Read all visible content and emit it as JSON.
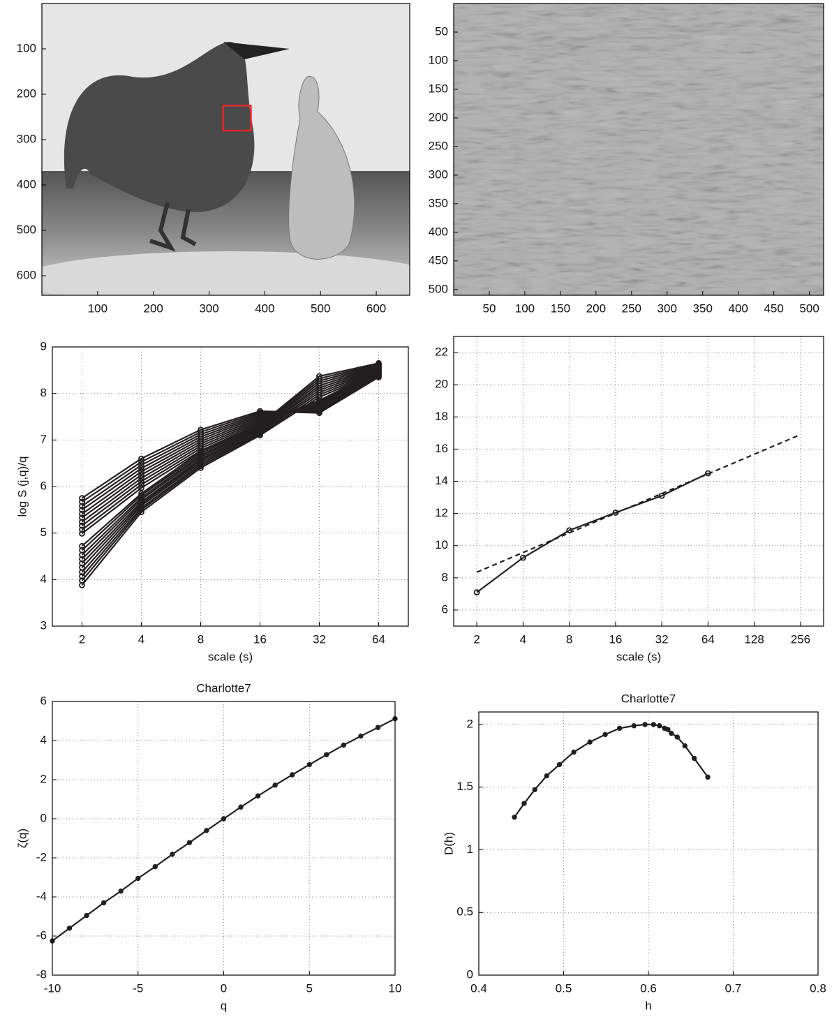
{
  "chart_data": [
    {
      "type": "image",
      "xlim": [
        0,
        660
      ],
      "ylim": [
        643,
        0
      ],
      "xticks": [
        100,
        200,
        300,
        400,
        500,
        600
      ],
      "yticks": [
        100,
        200,
        300,
        400,
        500,
        600
      ],
      "rectangle": {
        "x": [
          325,
          375
        ],
        "y": [
          225,
          280
        ],
        "color": "#e8262a"
      }
    },
    {
      "type": "image",
      "xlim": [
        0,
        520
      ],
      "ylim": [
        510,
        0
      ],
      "xticks": [
        50,
        100,
        150,
        200,
        250,
        300,
        350,
        400,
        450,
        500
      ],
      "yticks": [
        50,
        100,
        150,
        200,
        250,
        300,
        350,
        400,
        450,
        500
      ]
    },
    {
      "type": "line",
      "xscale": "log2",
      "xlim": [
        1.414,
        90.51
      ],
      "ylim": [
        3,
        9
      ],
      "xticks": [
        2,
        4,
        8,
        16,
        32,
        64
      ],
      "yticks": [
        3,
        4,
        5,
        6,
        7,
        8,
        9
      ],
      "xlabel": "scale (s)",
      "ylabel": "log S (j,q)/q",
      "grid": true,
      "marker": "circle",
      "x": [
        2,
        4,
        8,
        16,
        32,
        64
      ],
      "series": [
        {
          "color": "#231f20",
          "values": [
            5.75,
            6.6,
            7.22,
            7.62,
            7.58,
            8.35
          ]
        },
        {
          "color": "#231f20",
          "values": [
            5.67,
            6.53,
            7.17,
            7.59,
            7.61,
            8.37
          ]
        },
        {
          "color": "#231f20",
          "values": [
            5.58,
            6.46,
            7.12,
            7.56,
            7.64,
            8.38
          ]
        },
        {
          "color": "#231f20",
          "values": [
            5.5,
            6.39,
            7.07,
            7.53,
            7.67,
            8.4
          ]
        },
        {
          "color": "#231f20",
          "values": [
            5.41,
            6.32,
            7.02,
            7.5,
            7.7,
            8.41
          ]
        },
        {
          "color": "#231f20",
          "values": [
            5.33,
            6.25,
            6.97,
            7.47,
            7.73,
            8.43
          ]
        },
        {
          "color": "#231f20",
          "values": [
            5.24,
            6.18,
            6.92,
            7.44,
            7.76,
            8.44
          ]
        },
        {
          "color": "#231f20",
          "values": [
            5.16,
            6.11,
            6.87,
            7.41,
            7.79,
            8.46
          ]
        },
        {
          "color": "#231f20",
          "values": [
            5.07,
            6.04,
            6.82,
            7.38,
            7.82,
            8.47
          ]
        },
        {
          "color": "#231f20",
          "values": [
            4.99,
            5.97,
            6.77,
            7.35,
            7.85,
            8.49
          ]
        },
        {
          "color": "#231f20",
          "values": [
            4.72,
            5.85,
            6.75,
            7.33,
            8.37,
            8.65
          ]
        },
        {
          "color": "#231f20",
          "values": [
            4.63,
            5.81,
            6.71,
            7.31,
            8.32,
            8.63
          ]
        },
        {
          "color": "#231f20",
          "values": [
            4.53,
            5.76,
            6.67,
            7.28,
            8.27,
            8.61
          ]
        },
        {
          "color": "#231f20",
          "values": [
            4.44,
            5.72,
            6.63,
            7.26,
            8.22,
            8.59
          ]
        },
        {
          "color": "#231f20",
          "values": [
            4.35,
            5.67,
            6.59,
            7.23,
            8.17,
            8.57
          ]
        },
        {
          "color": "#231f20",
          "values": [
            4.26,
            5.63,
            6.56,
            7.21,
            8.12,
            8.55
          ]
        },
        {
          "color": "#231f20",
          "values": [
            4.16,
            5.59,
            6.52,
            7.18,
            8.07,
            8.53
          ]
        },
        {
          "color": "#231f20",
          "values": [
            4.07,
            5.54,
            6.48,
            7.16,
            8.02,
            8.51
          ]
        },
        {
          "color": "#231f20",
          "values": [
            3.98,
            5.5,
            6.44,
            7.13,
            7.97,
            8.49
          ]
        },
        {
          "color": "#231f20",
          "values": [
            3.88,
            5.45,
            6.4,
            7.1,
            7.92,
            8.47
          ]
        }
      ]
    },
    {
      "type": "line",
      "xscale": "log2",
      "xlim": [
        1.414,
        362.04
      ],
      "ylim": [
        5,
        23
      ],
      "xticks": [
        2,
        4,
        8,
        16,
        32,
        64,
        128,
        256
      ],
      "yticks": [
        6,
        8,
        10,
        12,
        14,
        16,
        18,
        20,
        22
      ],
      "xlabel": "scale (s)",
      "grid": true,
      "series": [
        {
          "color": "#231f20",
          "style": "solid",
          "marker": "circle",
          "x": [
            2,
            4,
            8,
            16,
            32,
            64
          ],
          "values": [
            7.1,
            9.25,
            10.95,
            12.05,
            13.1,
            14.5
          ]
        },
        {
          "color": "#231f20",
          "style": "dashed",
          "x": [
            2,
            256
          ],
          "values": [
            8.35,
            16.9
          ]
        }
      ]
    },
    {
      "type": "line",
      "title": "Charlotte7",
      "xlim": [
        -10,
        10
      ],
      "ylim": [
        -8,
        6
      ],
      "xticks": [
        -10,
        -5,
        0,
        5,
        10
      ],
      "yticks": [
        -8,
        -6,
        -4,
        -2,
        0,
        2,
        4,
        6
      ],
      "xlabel": "q",
      "ylabel": "ζ(q)",
      "grid": true,
      "marker": "dot",
      "series": [
        {
          "color": "#231f20",
          "x": [
            -10,
            -9,
            -8,
            -7,
            -6,
            -5,
            -4,
            -3,
            -2,
            -1,
            0,
            1,
            2,
            3,
            4,
            5,
            6,
            7,
            8,
            9,
            10
          ],
          "values": [
            -6.25,
            -5.6,
            -4.95,
            -4.3,
            -3.7,
            -3.05,
            -2.45,
            -1.82,
            -1.22,
            -0.6,
            0,
            0.6,
            1.17,
            1.72,
            2.25,
            2.77,
            3.28,
            3.77,
            4.23,
            4.67,
            5.12
          ]
        }
      ]
    },
    {
      "type": "line",
      "title": "Charlotte7",
      "xlim": [
        0.4,
        0.8
      ],
      "ylim": [
        0,
        2.1
      ],
      "xticks": [
        0.4,
        0.5,
        0.6,
        0.7,
        0.8
      ],
      "yticks": [
        0,
        0.5,
        1,
        1.5,
        2
      ],
      "xlabel": "h",
      "ylabel": "D(h)",
      "grid": true,
      "marker": "dot",
      "series": [
        {
          "color": "#231f20",
          "x": [
            0.442,
            0.4535,
            0.466,
            0.48,
            0.495,
            0.512,
            0.531,
            0.549,
            0.566,
            0.583,
            0.596,
            0.606,
            0.613,
            0.619,
            0.623,
            0.627,
            0.634,
            0.643,
            0.654,
            0.67
          ],
          "values": [
            1.26,
            1.37,
            1.48,
            1.59,
            1.68,
            1.78,
            1.86,
            1.92,
            1.97,
            1.99,
            2.0,
            2.0,
            1.99,
            1.97,
            1.96,
            1.93,
            1.9,
            1.83,
            1.73,
            1.58
          ]
        }
      ]
    }
  ]
}
